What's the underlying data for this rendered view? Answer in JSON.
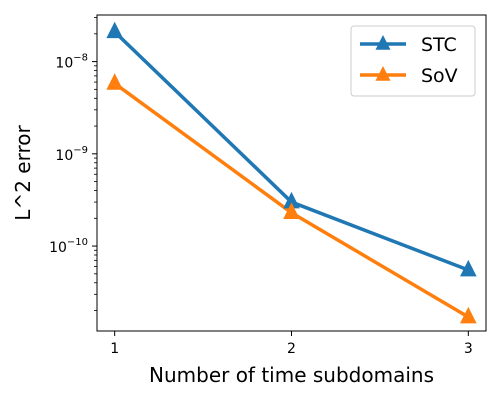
{
  "chart_data": {
    "type": "line",
    "xlabel": "Number of time subdomains",
    "ylabel": "L^2 error",
    "x": [
      1,
      2,
      3
    ],
    "x_tick_labels": [
      "1",
      "2",
      "3"
    ],
    "y_scale": "log",
    "y_tick_labels": [
      {
        "value": 1e-08,
        "base": "10",
        "exp": "−8"
      },
      {
        "value": 1e-09,
        "base": "10",
        "exp": "−9"
      },
      {
        "value": 1e-10,
        "base": "10",
        "exp": "−10"
      }
    ],
    "xlim": [
      0.9,
      3.1
    ],
    "ylim": [
      1.2e-11,
      3.2e-08
    ],
    "grid": false,
    "legend_position": "top-right",
    "series": [
      {
        "name": "STC",
        "color": "#1f77b4",
        "marker": "triangle",
        "values": [
          2.1e-08,
          3e-10,
          5.5e-11
        ]
      },
      {
        "name": "SoV",
        "color": "#ff7f0e",
        "marker": "triangle",
        "values": [
          5.8e-09,
          2.3e-10,
          1.7e-11
        ]
      }
    ]
  }
}
